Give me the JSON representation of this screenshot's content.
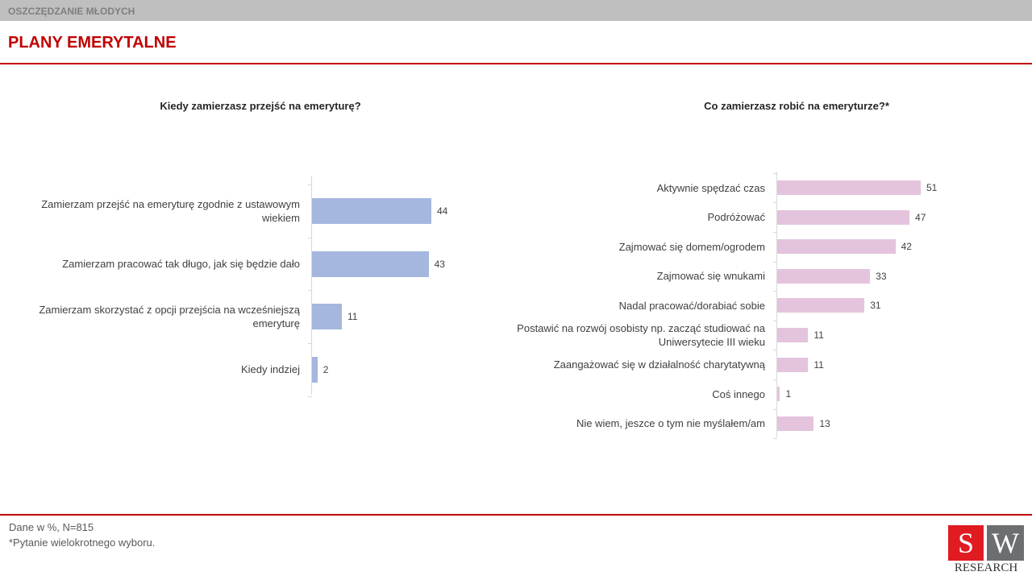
{
  "header": {
    "section": "OSZCZĘDZANIE MŁODYCH",
    "title": "PLANY EMERYTALNE"
  },
  "chart_data": [
    {
      "type": "bar",
      "orientation": "horizontal",
      "title": "Kiedy zamierzasz przejść na emeryturę?",
      "categories": [
        "Zamierzam przejść na emeryturę zgodnie z ustawowym wiekiem",
        "Zamierzam pracować tak długo, jak się będzie dało",
        "Zamierzam skorzystać z opcji przejścia na wcześniejszą emeryturę",
        "Kiedy indziej"
      ],
      "values": [
        44,
        43,
        11,
        2
      ],
      "color": "#a5b7df"
    },
    {
      "type": "bar",
      "orientation": "horizontal",
      "title": "Co zamierzasz robić na emeryturze?*",
      "categories": [
        "Aktywnie spędzać czas",
        "Podróżować",
        "Zajmować się domem/ogrodem",
        "Zajmować się wnukami",
        "Nadal pracować/dorabiać sobie",
        "Postawić na rozwój osobisty np. zacząć studiować na Uniwersytecie III wieku",
        "Zaangażować się w działalność charytatywną",
        "Coś innego",
        "Nie wiem, jeszce o tym nie myślałem/am"
      ],
      "values": [
        51,
        47,
        42,
        33,
        31,
        11,
        11,
        1,
        13
      ],
      "color": "#e4c3dd"
    }
  ],
  "footer": {
    "notes": [
      "Dane w %, N=815",
      "*Pytanie wielokrotnego wyboru."
    ],
    "logo": [
      "S",
      "W",
      "RESEARCH"
    ]
  }
}
